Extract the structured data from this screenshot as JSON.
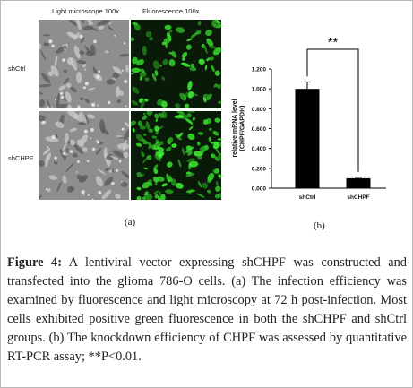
{
  "panel_a": {
    "col_headers": [
      "Light microscope 100x",
      "Fluorescence 100x"
    ],
    "row_labels": [
      "shCtrl",
      "shCHPF"
    ],
    "label": "(a)"
  },
  "chart_label": "(b)",
  "caption": {
    "figure_label": "Figure 4:",
    "text": " A lentiviral vector expressing shCHPF was constructed and transfected into the glioma 786-O cells. (a) The infection efficiency was examined by fluorescence and light microscopy at 72 h post-infection. Most cells exhibited positive green fluorescence in both the shCHPF and shCtrl groups. (b) The knockdown efficiency of CHPF was assessed by quantitative RT-PCR assay; **P<0.01."
  },
  "chart_data": {
    "type": "bar",
    "categories": [
      "shCtrl",
      "shCHPF"
    ],
    "values": [
      1.0,
      0.1
    ],
    "errors": [
      0.07,
      0.01
    ],
    "ylabel": "relative mRNA level (CHPF/GAPDH)",
    "ylabel_lines": [
      "relative mRNA level",
      "(CHPF/GAPDH)"
    ],
    "yticks": [
      "0.000",
      "0.200",
      "0.400",
      "0.600",
      "0.800",
      "1.000",
      "1.200"
    ],
    "ylim": [
      0,
      1.2
    ],
    "significance": "**",
    "bar_color": "#000000"
  }
}
